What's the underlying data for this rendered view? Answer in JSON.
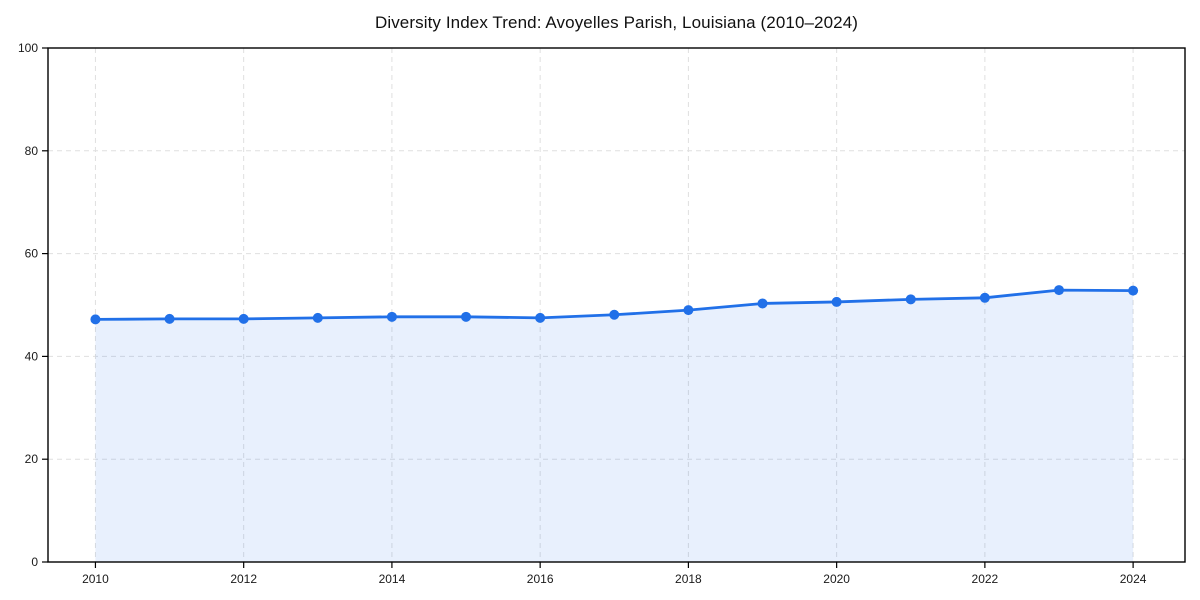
{
  "chart_data": {
    "type": "line",
    "title": "Diversity Index Trend: Avoyelles Parish, Louisiana (2010–2024)",
    "xlabel": "",
    "ylabel": "",
    "x": [
      2010,
      2011,
      2012,
      2013,
      2014,
      2015,
      2016,
      2017,
      2018,
      2019,
      2020,
      2021,
      2022,
      2023,
      2024
    ],
    "series": [
      {
        "name": "Diversity Index",
        "values": [
          47.2,
          47.3,
          47.3,
          47.5,
          47.7,
          47.7,
          47.5,
          48.1,
          49.0,
          50.3,
          50.6,
          51.1,
          51.4,
          52.9,
          52.8
        ]
      }
    ],
    "xticks": [
      2010,
      2012,
      2014,
      2016,
      2018,
      2020,
      2022,
      2024
    ],
    "yticks": [
      0,
      20,
      40,
      60,
      80,
      100
    ],
    "xlim": [
      2009.36,
      2024.7
    ],
    "ylim": [
      0,
      100
    ],
    "grid": true,
    "grid_style": "dashed",
    "legend": false,
    "area_fill": true,
    "colors": {
      "line": "#2170e8",
      "marker": "#2170e8",
      "fill": "#2170e8",
      "fill_opacity": 0.1,
      "grid": "#dfdfdf",
      "frame": "#000000",
      "text": "#1a1a1a",
      "background": "#ffffff"
    },
    "marker_radius": 5,
    "line_width": 2.8
  }
}
